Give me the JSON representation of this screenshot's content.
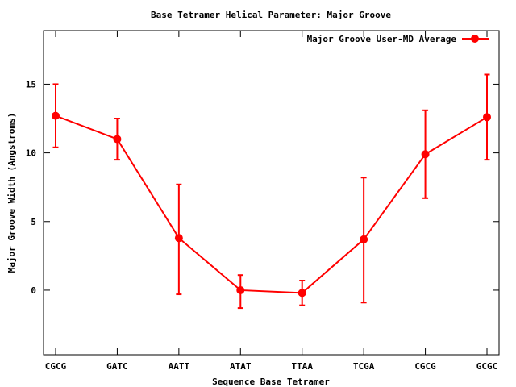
{
  "chart_data": {
    "type": "line",
    "title": "Base Tetramer Helical Parameter: Major Groove",
    "xlabel": "Sequence Base Tetramer",
    "ylabel": "Major Groove Width (Angstroms)",
    "categories": [
      "CGCG",
      "GATC",
      "AATT",
      "ATAT",
      "TTAA",
      "TCGA",
      "CGCG",
      "GCGC"
    ],
    "ylim": [
      -4.7,
      18.9
    ],
    "yticks": [
      0,
      5,
      10,
      15
    ],
    "legend_position": "top-right",
    "grid": false,
    "series": [
      {
        "name": "Major Groove User-MD Average",
        "color": "#ff0000",
        "values": [
          12.7,
          11.0,
          3.8,
          0.0,
          -0.2,
          3.7,
          9.9,
          12.6
        ],
        "error_low": [
          10.4,
          9.5,
          -0.3,
          -1.3,
          -1.1,
          -0.9,
          6.7,
          9.5
        ],
        "error_high": [
          15.0,
          12.5,
          7.7,
          1.1,
          0.7,
          8.2,
          13.1,
          15.7
        ]
      }
    ]
  }
}
